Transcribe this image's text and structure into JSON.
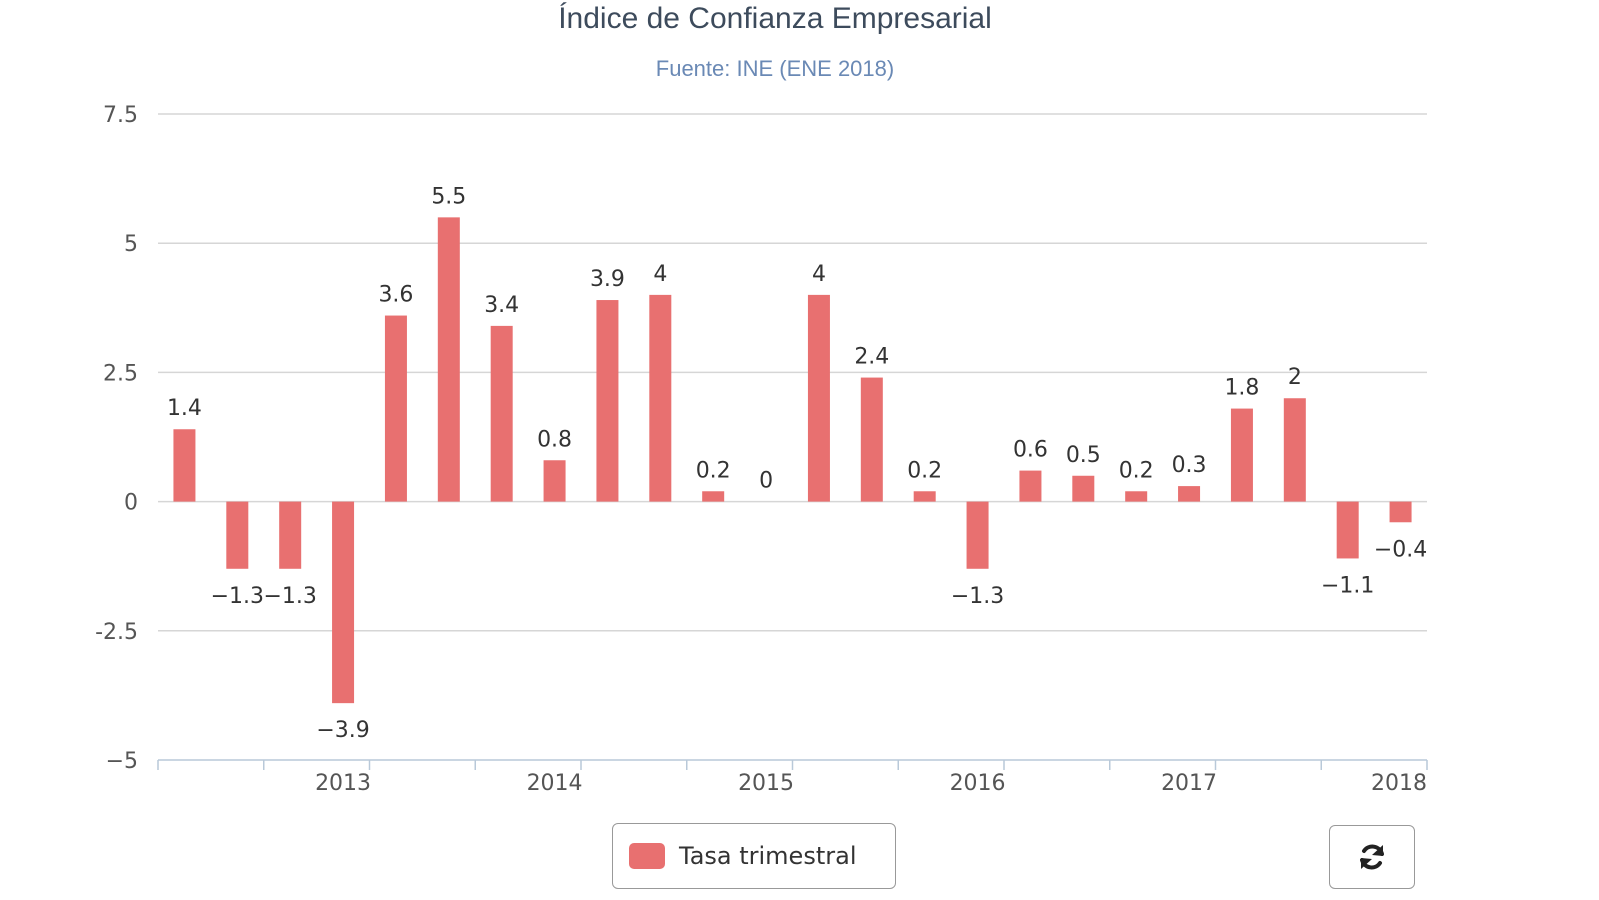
{
  "chart_data": {
    "type": "bar",
    "title": "Índice de Confianza Empresarial",
    "subtitle": "Fuente: INE (ENE 2018)",
    "ylim": [
      -5,
      7.5
    ],
    "yticks": [
      "7.5",
      "5",
      "2.5",
      "0",
      "-2.5",
      "−5"
    ],
    "ytick_values": [
      7.5,
      5,
      2.5,
      0,
      -2.5,
      -5
    ],
    "x_labels": [
      {
        "label": "2013",
        "after_bar": 3
      },
      {
        "label": "2014",
        "after_bar": 7
      },
      {
        "label": "2015",
        "after_bar": 11
      },
      {
        "label": "2016",
        "after_bar": 15
      },
      {
        "label": "2017",
        "after_bar": 19
      },
      {
        "label": "2018",
        "after_bar": 23
      }
    ],
    "grid": true,
    "legend_position": "bottom-center",
    "series": [
      {
        "name": "Tasa trimestral",
        "color": "#e87070",
        "values": [
          1.4,
          -1.3,
          -1.3,
          -3.9,
          3.6,
          5.5,
          3.4,
          0.8,
          3.9,
          4,
          0.2,
          0,
          4,
          2.4,
          0.2,
          -1.3,
          0.6,
          0.5,
          0.2,
          0.3,
          1.8,
          2,
          -1.1,
          -0.4
        ],
        "data_labels": [
          "1.4",
          "−1.3",
          "−1.3",
          "−3.9",
          "3.6",
          "5.5",
          "3.4",
          "0.8",
          "3.9",
          "4",
          "0.2",
          "0",
          "4",
          "2.4",
          "0.2",
          "−1.3",
          "0.6",
          "0.5",
          "0.2",
          "0.3",
          "1.8",
          "2",
          "−1.1",
          "−0.4"
        ]
      }
    ]
  },
  "legend": {
    "label": "Tasa trimestral",
    "color": "#e87070"
  },
  "controls": {
    "refresh_icon": "refresh-icon"
  }
}
